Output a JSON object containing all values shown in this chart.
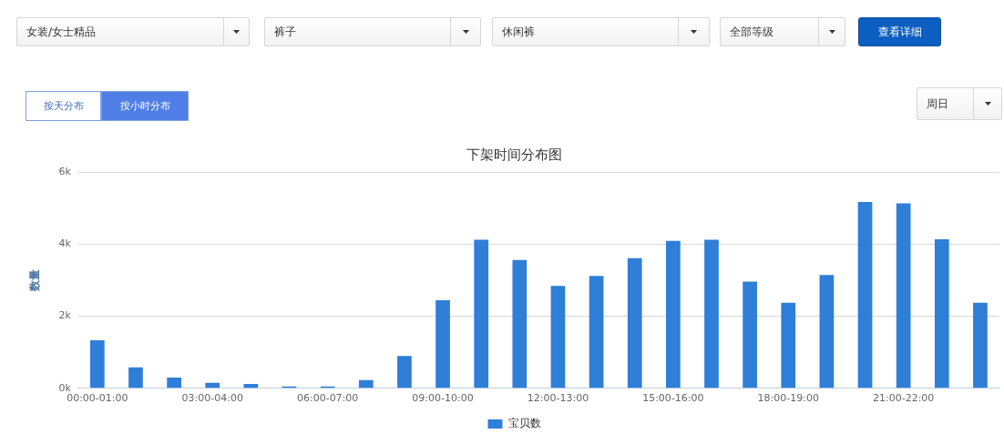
{
  "chart_data": {
    "type": "bar",
    "title": "下架时间分布图",
    "ylabel": "数量",
    "categories": [
      "00:00-01:00",
      null,
      null,
      "03:00-04:00",
      null,
      null,
      "06:00-07:00",
      null,
      null,
      "09:00-10:00",
      null,
      null,
      "12:00-13:00",
      null,
      null,
      "15:00-16:00",
      null,
      null,
      "18:00-19:00",
      null,
      null,
      "21:00-22:00",
      null,
      null
    ],
    "series": [
      {
        "name": "宝贝数",
        "color": "#2f7ed8",
        "values": [
          1330,
          580,
          300,
          150,
          120,
          50,
          50,
          230,
          900,
          2440,
          4120,
          3560,
          2840,
          3120,
          3610,
          4090,
          4120,
          2960,
          2370,
          3140,
          5170,
          5130,
          4130,
          2370
        ]
      }
    ],
    "ylim": [
      0,
      6000
    ],
    "yticks": [
      {
        "value": 0,
        "label": "0k"
      },
      {
        "value": 2000,
        "label": "2k"
      },
      {
        "value": 4000,
        "label": "4k"
      },
      {
        "value": 6000,
        "label": "6k"
      }
    ],
    "grid": "y",
    "legend": "bottom",
    "annotations": [
      "女装/女士精品",
      "裤子",
      "休闲裤",
      "全部等级",
      "查看详细",
      "按天分布",
      "按小时分布",
      "周日"
    ]
  }
}
